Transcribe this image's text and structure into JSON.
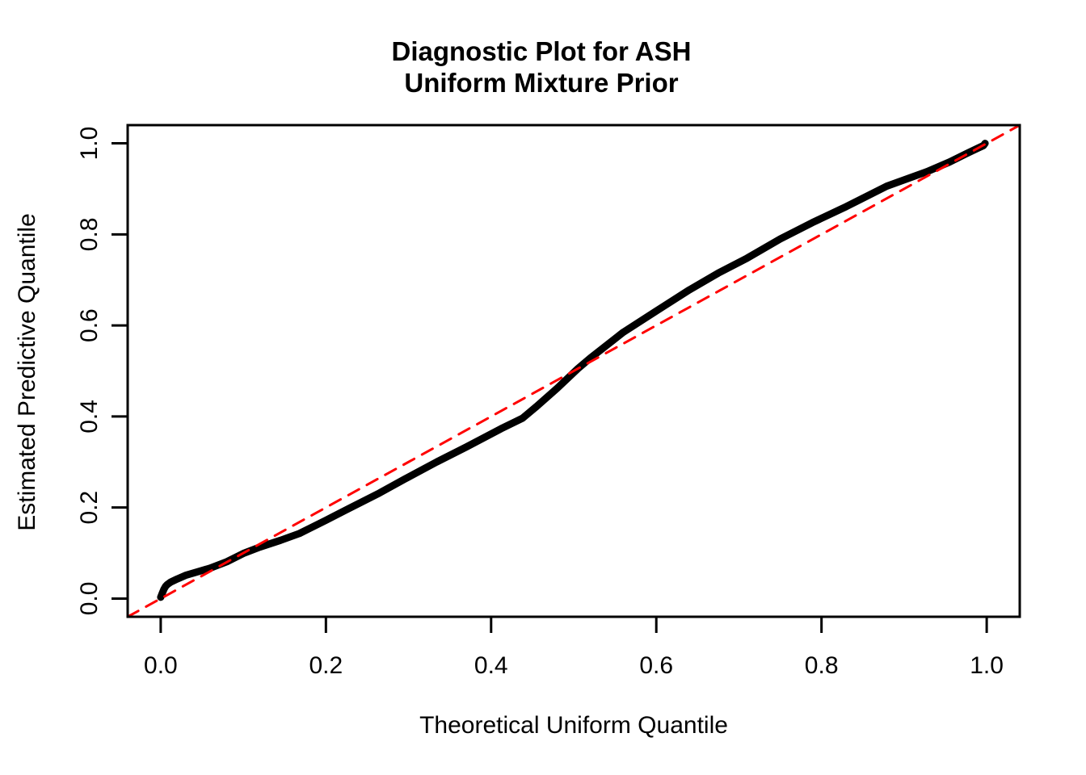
{
  "title": {
    "line1": "Diagnostic Plot for ASH",
    "line2": "Uniform Mixture Prior"
  },
  "colors": {
    "foreground": "#000000",
    "reference_line": "#FF0000",
    "background": "#FFFFFF"
  },
  "chart_data": {
    "type": "line",
    "title": "Diagnostic Plot for ASH — Uniform Mixture Prior",
    "xlabel": "Theoretical Uniform Quantile",
    "ylabel": "Estimated Predictive Quantile",
    "xlim": [
      -0.04,
      1.04
    ],
    "ylim": [
      -0.04,
      1.04
    ],
    "grid": false,
    "legend": "none",
    "x_ticks": [
      0.0,
      0.2,
      0.4,
      0.6,
      0.8,
      1.0
    ],
    "y_ticks": [
      0.0,
      0.2,
      0.4,
      0.6,
      0.8,
      1.0
    ],
    "x_tick_labels": [
      "0.0",
      "0.2",
      "0.4",
      "0.6",
      "0.8",
      "1.0"
    ],
    "y_tick_labels": [
      "0.0",
      "0.2",
      "0.4",
      "0.6",
      "0.8",
      "1.0"
    ],
    "series": [
      {
        "name": "estimated-vs-theoretical-quantiles",
        "color": "#000000",
        "width": 9,
        "style": "solid",
        "points": [
          [
            0.0,
            0.003
          ],
          [
            0.002,
            0.012
          ],
          [
            0.004,
            0.021
          ],
          [
            0.006,
            0.027
          ],
          [
            0.008,
            0.031
          ],
          [
            0.012,
            0.036
          ],
          [
            0.02,
            0.043
          ],
          [
            0.03,
            0.051
          ],
          [
            0.045,
            0.059
          ],
          [
            0.06,
            0.067
          ],
          [
            0.08,
            0.081
          ],
          [
            0.1,
            0.099
          ],
          [
            0.12,
            0.113
          ],
          [
            0.145,
            0.128
          ],
          [
            0.168,
            0.143
          ],
          [
            0.2,
            0.172
          ],
          [
            0.23,
            0.2
          ],
          [
            0.265,
            0.232
          ],
          [
            0.295,
            0.262
          ],
          [
            0.334,
            0.3
          ],
          [
            0.37,
            0.333
          ],
          [
            0.412,
            0.373
          ],
          [
            0.438,
            0.396
          ],
          [
            0.455,
            0.422
          ],
          [
            0.48,
            0.462
          ],
          [
            0.505,
            0.505
          ],
          [
            0.52,
            0.528
          ],
          [
            0.56,
            0.585
          ],
          [
            0.607,
            0.64
          ],
          [
            0.64,
            0.678
          ],
          [
            0.675,
            0.715
          ],
          [
            0.71,
            0.748
          ],
          [
            0.75,
            0.79
          ],
          [
            0.789,
            0.826
          ],
          [
            0.83,
            0.861
          ],
          [
            0.879,
            0.906
          ],
          [
            0.928,
            0.938
          ],
          [
            0.955,
            0.959
          ],
          [
            0.975,
            0.977
          ],
          [
            0.99,
            0.99
          ],
          [
            0.996,
            0.995
          ],
          [
            0.998,
            1.0
          ]
        ]
      },
      {
        "name": "identity-reference-line",
        "color": "#FF0000",
        "width": 3,
        "style": "dashed",
        "points": [
          [
            -0.04,
            -0.04
          ],
          [
            1.04,
            1.04
          ]
        ]
      }
    ]
  }
}
